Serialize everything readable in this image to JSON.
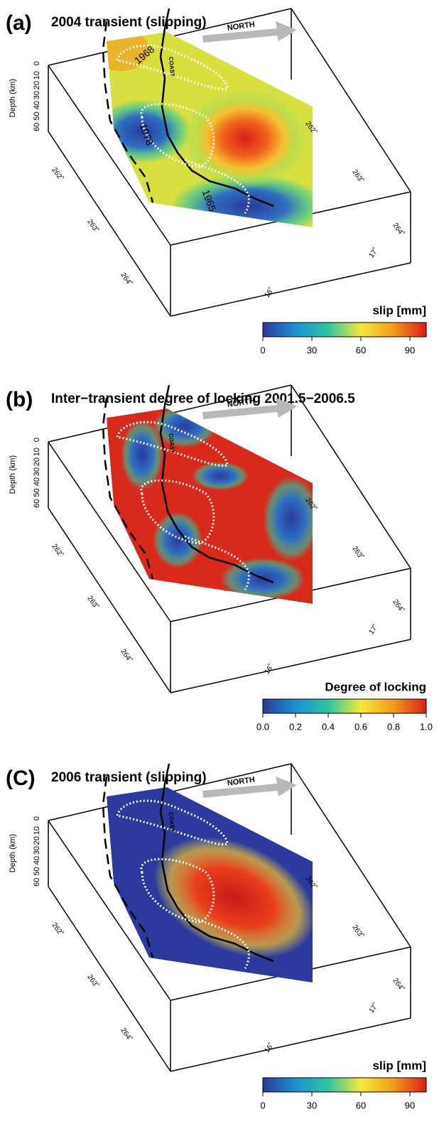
{
  "panels": [
    {
      "label": "(a)",
      "title": "2004 transient (slipping)",
      "north": "NORTH",
      "coast": "COAST",
      "depth_label": "Depth (km)",
      "depth_ticks": [
        "0",
        "10",
        "20",
        "30",
        "60 50 40"
      ],
      "lon_left": [
        "262˚",
        "263˚",
        "264˚"
      ],
      "lon_right": [
        "262˚",
        "263˚",
        "264˚"
      ],
      "lat": [
        "16˚",
        "17˚"
      ],
      "events": [
        "1968",
        "1978",
        "1965"
      ],
      "colorbar_title": "slip [mm]",
      "colorbar_ticks": [
        "0",
        "30",
        "60",
        "90"
      ]
    },
    {
      "label": "(b)",
      "title": "Inter−transient degree of locking 2001.5−2006.5",
      "north": "NORTH",
      "coast": "COAST",
      "depth_label": "Depth (km)",
      "depth_ticks": [
        "0",
        "10",
        "20",
        "30",
        "60 50 40"
      ],
      "lon_left": [
        "262˚",
        "263˚",
        "264˚"
      ],
      "lon_right": [
        "262˚",
        "263˚",
        "264˚"
      ],
      "lat": [
        "16˚",
        "17˚"
      ],
      "colorbar_title": "Degree of locking",
      "colorbar_ticks": [
        "0.0",
        "0.2",
        "0.4",
        "0.6",
        "0.8",
        "1.0"
      ]
    },
    {
      "label": "(C)",
      "title": "2006 transient (slipping)",
      "north": "NORTH",
      "coast": "COAST",
      "depth_label": "Depth (km)",
      "depth_ticks": [
        "0",
        "10",
        "20",
        "30",
        "60 50 40"
      ],
      "lon_left": [
        "262˚",
        "263˚",
        "264˚"
      ],
      "lon_right": [
        "262˚",
        "263˚",
        "264˚"
      ],
      "lat": [
        "16˚",
        "17˚"
      ],
      "colorbar_title": "slip [mm]",
      "colorbar_ticks": [
        "0",
        "30",
        "60",
        "90"
      ]
    }
  ]
}
